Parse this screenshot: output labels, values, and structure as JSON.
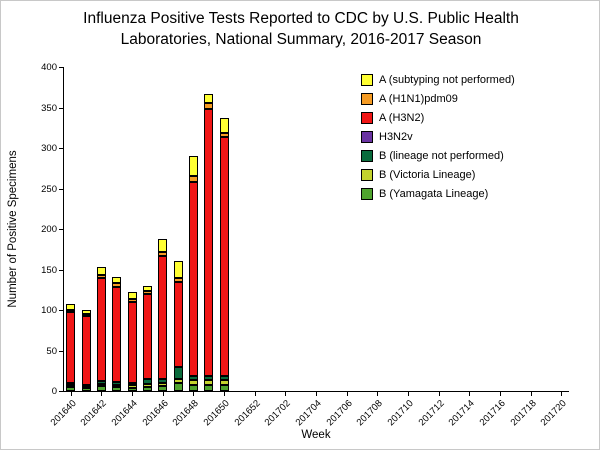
{
  "header": {
    "line1": "Influenza Positive Tests Reported to CDC by U.S. Public Health",
    "line2": "Laboratories, National Summary, 2016-2017 Season"
  },
  "chart_data": {
    "type": "bar",
    "stacked": true,
    "title": "Influenza Positive Tests Reported to CDC by U.S. Public Health Laboratories, National Summary, 2016-2017 Season",
    "xlabel": "Week",
    "ylabel": "Number of Positive Specimens",
    "ylim": [
      0,
      400
    ],
    "ytick_step": 50,
    "grid": false,
    "legend_position": "upper-right",
    "categories": [
      "201640",
      "201641",
      "201642",
      "201643",
      "201644",
      "201645",
      "201646",
      "201647",
      "201648",
      "201649",
      "201650",
      "201651",
      "201652",
      "201701",
      "201702",
      "201703",
      "201704",
      "201705",
      "201706",
      "201707",
      "201708",
      "201709",
      "201710",
      "201711",
      "201712",
      "201713",
      "201714",
      "201715",
      "201716",
      "201717",
      "201718",
      "201719",
      "201720"
    ],
    "xtick_labels": [
      "201640",
      "201642",
      "201644",
      "201646",
      "201648",
      "201650",
      "201652",
      "201702",
      "201704",
      "201706",
      "201708",
      "201710",
      "201712",
      "201714",
      "201716",
      "201718",
      "201720"
    ],
    "series": [
      {
        "name": "A (subtyping not performed)",
        "color": "#FFFF33",
        "values": [
          7,
          5,
          10,
          8,
          8,
          7,
          17,
          20,
          25,
          12,
          18,
          0,
          0,
          0,
          0,
          0,
          0,
          0,
          0,
          0,
          0,
          0,
          0,
          0,
          0,
          0,
          0,
          0,
          0,
          0,
          0,
          0,
          0
        ]
      },
      {
        "name": "A (H1N1)pdm09",
        "color": "#F59B23",
        "values": [
          2,
          2,
          3,
          4,
          4,
          3,
          4,
          5,
          7,
          7,
          6,
          0,
          0,
          0,
          0,
          0,
          0,
          0,
          0,
          0,
          0,
          0,
          0,
          0,
          0,
          0,
          0,
          0,
          0,
          0,
          0,
          0,
          0
        ]
      },
      {
        "name": "A (H3N2)",
        "color": "#F01616",
        "values": [
          88,
          85,
          128,
          118,
          100,
          105,
          152,
          105,
          240,
          330,
          295,
          0,
          0,
          0,
          0,
          0,
          0,
          0,
          0,
          0,
          0,
          0,
          0,
          0,
          0,
          0,
          0,
          0,
          0,
          0,
          0,
          0,
          0
        ]
      },
      {
        "name": "H3N2v",
        "color": "#6A33A2",
        "values": [
          0,
          0,
          0,
          0,
          0,
          0,
          0,
          0,
          0,
          0,
          0,
          0,
          0,
          0,
          0,
          0,
          0,
          0,
          0,
          0,
          0,
          0,
          0,
          0,
          0,
          0,
          0,
          0,
          0,
          0,
          0,
          0,
          0
        ]
      },
      {
        "name": "B (lineage not performed)",
        "color": "#0A6B3C",
        "values": [
          2,
          2,
          3,
          3,
          3,
          6,
          5,
          15,
          5,
          5,
          5,
          0,
          0,
          0,
          0,
          0,
          0,
          0,
          0,
          0,
          0,
          0,
          0,
          0,
          0,
          0,
          0,
          0,
          0,
          0,
          0,
          0,
          0
        ]
      },
      {
        "name": "B (Victoria Lineage)",
        "color": "#C3D32D",
        "values": [
          3,
          2,
          3,
          3,
          3,
          4,
          4,
          5,
          5,
          5,
          5,
          0,
          0,
          0,
          0,
          0,
          0,
          0,
          0,
          0,
          0,
          0,
          0,
          0,
          0,
          0,
          0,
          0,
          0,
          0,
          0,
          0,
          0
        ]
      },
      {
        "name": "B (Yamagata Lineage)",
        "color": "#4FA32E",
        "values": [
          5,
          4,
          6,
          5,
          4,
          5,
          6,
          10,
          8,
          8,
          8,
          0,
          0,
          0,
          0,
          0,
          0,
          0,
          0,
          0,
          0,
          0,
          0,
          0,
          0,
          0,
          0,
          0,
          0,
          0,
          0,
          0,
          0
        ]
      }
    ]
  }
}
